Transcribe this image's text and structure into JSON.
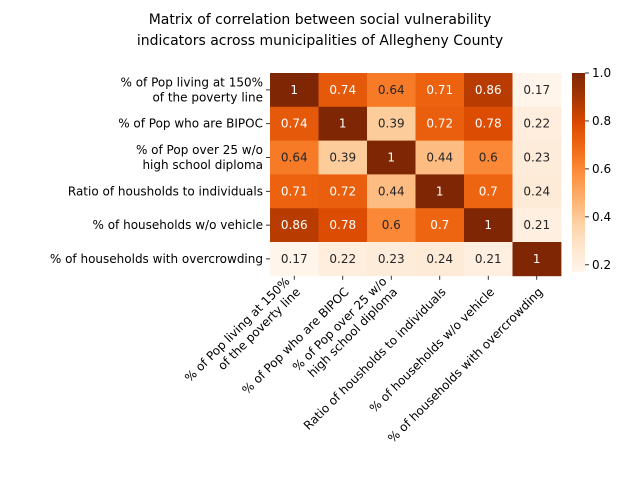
{
  "chart_data": {
    "type": "heatmap",
    "title_lines": [
      "Matrix of correlation between social vulnerability",
      "indicators across municipalities of Allegheny County"
    ],
    "rows": [
      [
        "% of Pop living at 150%",
        "of the poverty line"
      ],
      [
        "% of Pop who are BIPOC"
      ],
      [
        "% of Pop over 25 w/o",
        "high school diploma"
      ],
      [
        "Ratio of housholds to individuals"
      ],
      [
        "% of households w/o vehicle"
      ],
      [
        "% of households with overcrowding"
      ]
    ],
    "columns": [
      [
        "% of Pop living at 150%",
        "of the poverty line"
      ],
      [
        "% of Pop who are BIPOC"
      ],
      [
        "% of Pop over 25 w/o",
        "high school diploma"
      ],
      [
        "Ratio of housholds to individuals"
      ],
      [
        "% of households w/o vehicle"
      ],
      [
        "% of households with overcrowding"
      ]
    ],
    "values": [
      [
        1,
        0.74,
        0.64,
        0.71,
        0.86,
        0.17
      ],
      [
        0.74,
        1,
        0.39,
        0.72,
        0.78,
        0.22
      ],
      [
        0.64,
        0.39,
        1,
        0.44,
        0.6,
        0.23
      ],
      [
        0.71,
        0.72,
        0.44,
        1,
        0.7,
        0.24
      ],
      [
        0.86,
        0.78,
        0.6,
        0.7,
        1,
        0.21
      ],
      [
        0.17,
        0.22,
        0.23,
        0.24,
        0.21,
        1
      ]
    ],
    "colorscale": "Oranges",
    "color_range": [
      0.17,
      1
    ],
    "colorbar_ticks": [
      "0.2",
      "0.4",
      "0.6",
      "0.8",
      "1.0"
    ]
  }
}
